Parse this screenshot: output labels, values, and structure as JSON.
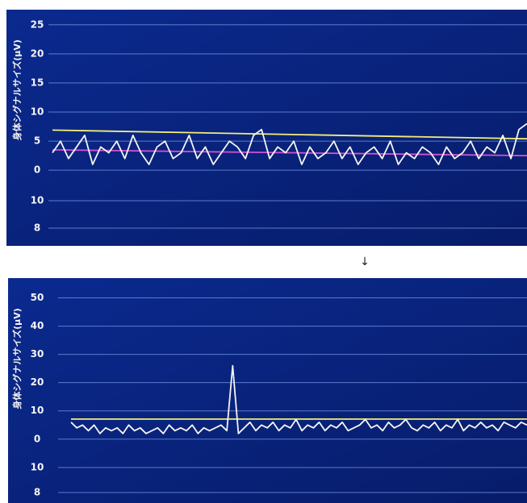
{
  "chart_data": [
    {
      "type": "line",
      "y_label": "身体シグナルサイズ(μV)",
      "ylim": [
        -13,
        27.6
      ],
      "yticks": [
        0,
        5,
        10,
        15,
        20,
        25
      ],
      "grid": true,
      "extra_tick_labels": [
        "10",
        "8"
      ],
      "series": [
        {
          "color": "#f2ef7a",
          "values": [
            6.9,
            5.4
          ]
        },
        {
          "color": "#d94fd6",
          "values": [
            3.5,
            2.5
          ]
        },
        {
          "color": "#f5f5f0",
          "values": [
            3,
            5,
            2,
            4,
            6,
            1,
            4,
            3,
            5,
            2,
            6,
            3,
            1,
            4,
            5,
            2,
            3,
            6,
            2,
            4,
            1,
            3,
            5,
            4,
            2,
            6,
            7,
            2,
            4,
            3,
            5,
            1,
            4,
            2,
            3,
            5,
            2,
            4,
            1,
            3,
            4,
            2,
            5,
            1,
            3,
            2,
            4,
            3,
            1,
            4,
            2,
            3,
            5,
            2,
            4,
            3,
            6,
            2,
            7,
            8
          ]
        }
      ]
    },
    {
      "type": "line",
      "y_label": "身体シグナルサイズ(μV)",
      "ylim": [
        -22.6,
        57
      ],
      "yticks": [
        0,
        10,
        20,
        30,
        40,
        50
      ],
      "grid": true,
      "extra_tick_labels": [
        "10",
        "8"
      ],
      "series": [
        {
          "color": "#f2ef7a",
          "values": [
            7.1,
            7.1
          ]
        },
        {
          "color": "#f5f5f0",
          "values": [
            6,
            4,
            5,
            3,
            5,
            2,
            4,
            3,
            4,
            2,
            5,
            3,
            4,
            2,
            3,
            4,
            2,
            5,
            3,
            4,
            3,
            5,
            2,
            4,
            3,
            4,
            5,
            3,
            26,
            2,
            4,
            6,
            3,
            5,
            4,
            6,
            3,
            5,
            4,
            7,
            3,
            5,
            4,
            6,
            3,
            5,
            4,
            6,
            3,
            4,
            5,
            7,
            4,
            5,
            3,
            6,
            4,
            5,
            7,
            4,
            3,
            5,
            4,
            6,
            3,
            5,
            4,
            7,
            3,
            5,
            4,
            6,
            4,
            5,
            3,
            6,
            5,
            4,
            6,
            5
          ]
        }
      ]
    }
  ]
}
